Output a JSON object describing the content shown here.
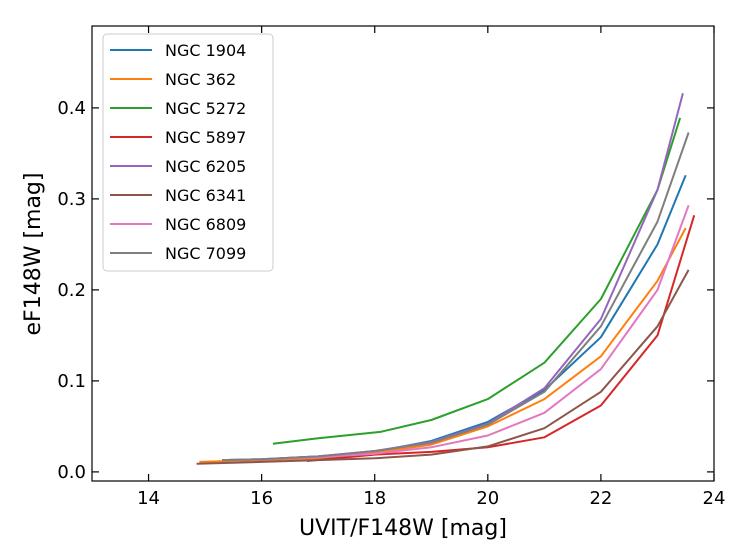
{
  "chart_data": {
    "type": "line",
    "title": "",
    "xlabel": "UVIT/F148W [mag]",
    "ylabel": "eF148W [mag]",
    "xlim": [
      13,
      24
    ],
    "ylim": [
      -0.01,
      0.49
    ],
    "xticks": [
      14,
      16,
      18,
      20,
      22,
      24
    ],
    "yticks": [
      0.0,
      0.1,
      0.2,
      0.3,
      0.4
    ],
    "xtick_labels": [
      "14",
      "16",
      "18",
      "20",
      "22",
      "24"
    ],
    "ytick_labels": [
      "0.0",
      "0.1",
      "0.2",
      "0.3",
      "0.4"
    ],
    "legend_position": "top-left",
    "series": [
      {
        "name": "NGC 1904",
        "color": "#1f77b4",
        "x": [
          15.3,
          16.0,
          17.0,
          18.0,
          19.0,
          20.0,
          21.0,
          22.0,
          23.0,
          23.5
        ],
        "y": [
          0.013,
          0.014,
          0.017,
          0.022,
          0.034,
          0.055,
          0.09,
          0.148,
          0.25,
          0.326
        ]
      },
      {
        "name": "NGC 362",
        "color": "#ff7f0e",
        "x": [
          14.9,
          16.0,
          17.0,
          18.0,
          19.0,
          20.0,
          21.0,
          22.0,
          23.0,
          23.5
        ],
        "y": [
          0.011,
          0.013,
          0.015,
          0.021,
          0.03,
          0.05,
          0.08,
          0.127,
          0.21,
          0.268
        ]
      },
      {
        "name": "NGC 5272",
        "color": "#2ca02c",
        "x": [
          16.2,
          17.0,
          18.1,
          19.0,
          20.0,
          21.0,
          22.0,
          23.0,
          23.4
        ],
        "y": [
          0.031,
          0.037,
          0.044,
          0.057,
          0.08,
          0.12,
          0.19,
          0.31,
          0.389
        ]
      },
      {
        "name": "NGC 5897",
        "color": "#d62728",
        "x": [
          16.8,
          18.0,
          19.0,
          20.0,
          21.0,
          22.0,
          23.0,
          23.65
        ],
        "y": [
          0.012,
          0.019,
          0.022,
          0.027,
          0.038,
          0.073,
          0.15,
          0.282
        ]
      },
      {
        "name": "NGC 6205",
        "color": "#9467bd",
        "x": [
          15.3,
          16.0,
          17.0,
          18.0,
          19.0,
          20.0,
          21.0,
          22.0,
          23.0,
          23.45
        ],
        "y": [
          0.013,
          0.014,
          0.017,
          0.023,
          0.033,
          0.053,
          0.092,
          0.168,
          0.31,
          0.416
        ]
      },
      {
        "name": "NGC 6341",
        "color": "#8c564b",
        "x": [
          14.85,
          16.0,
          17.0,
          18.0,
          19.0,
          20.0,
          21.0,
          22.0,
          23.0,
          23.55
        ],
        "y": [
          0.009,
          0.011,
          0.013,
          0.015,
          0.019,
          0.028,
          0.048,
          0.088,
          0.16,
          0.222
        ]
      },
      {
        "name": "NGC 6809",
        "color": "#e377c2",
        "x": [
          15.3,
          16.0,
          17.0,
          18.0,
          19.0,
          20.0,
          21.0,
          22.0,
          23.0,
          23.55
        ],
        "y": [
          0.013,
          0.014,
          0.016,
          0.02,
          0.027,
          0.04,
          0.065,
          0.113,
          0.2,
          0.293
        ]
      },
      {
        "name": "NGC 7099",
        "color": "#7f7f7f",
        "x": [
          15.3,
          16.0,
          17.0,
          18.0,
          19.0,
          20.0,
          21.0,
          22.0,
          23.0,
          23.55
        ],
        "y": [
          0.013,
          0.014,
          0.017,
          0.023,
          0.032,
          0.052,
          0.088,
          0.16,
          0.275,
          0.373
        ]
      }
    ]
  }
}
